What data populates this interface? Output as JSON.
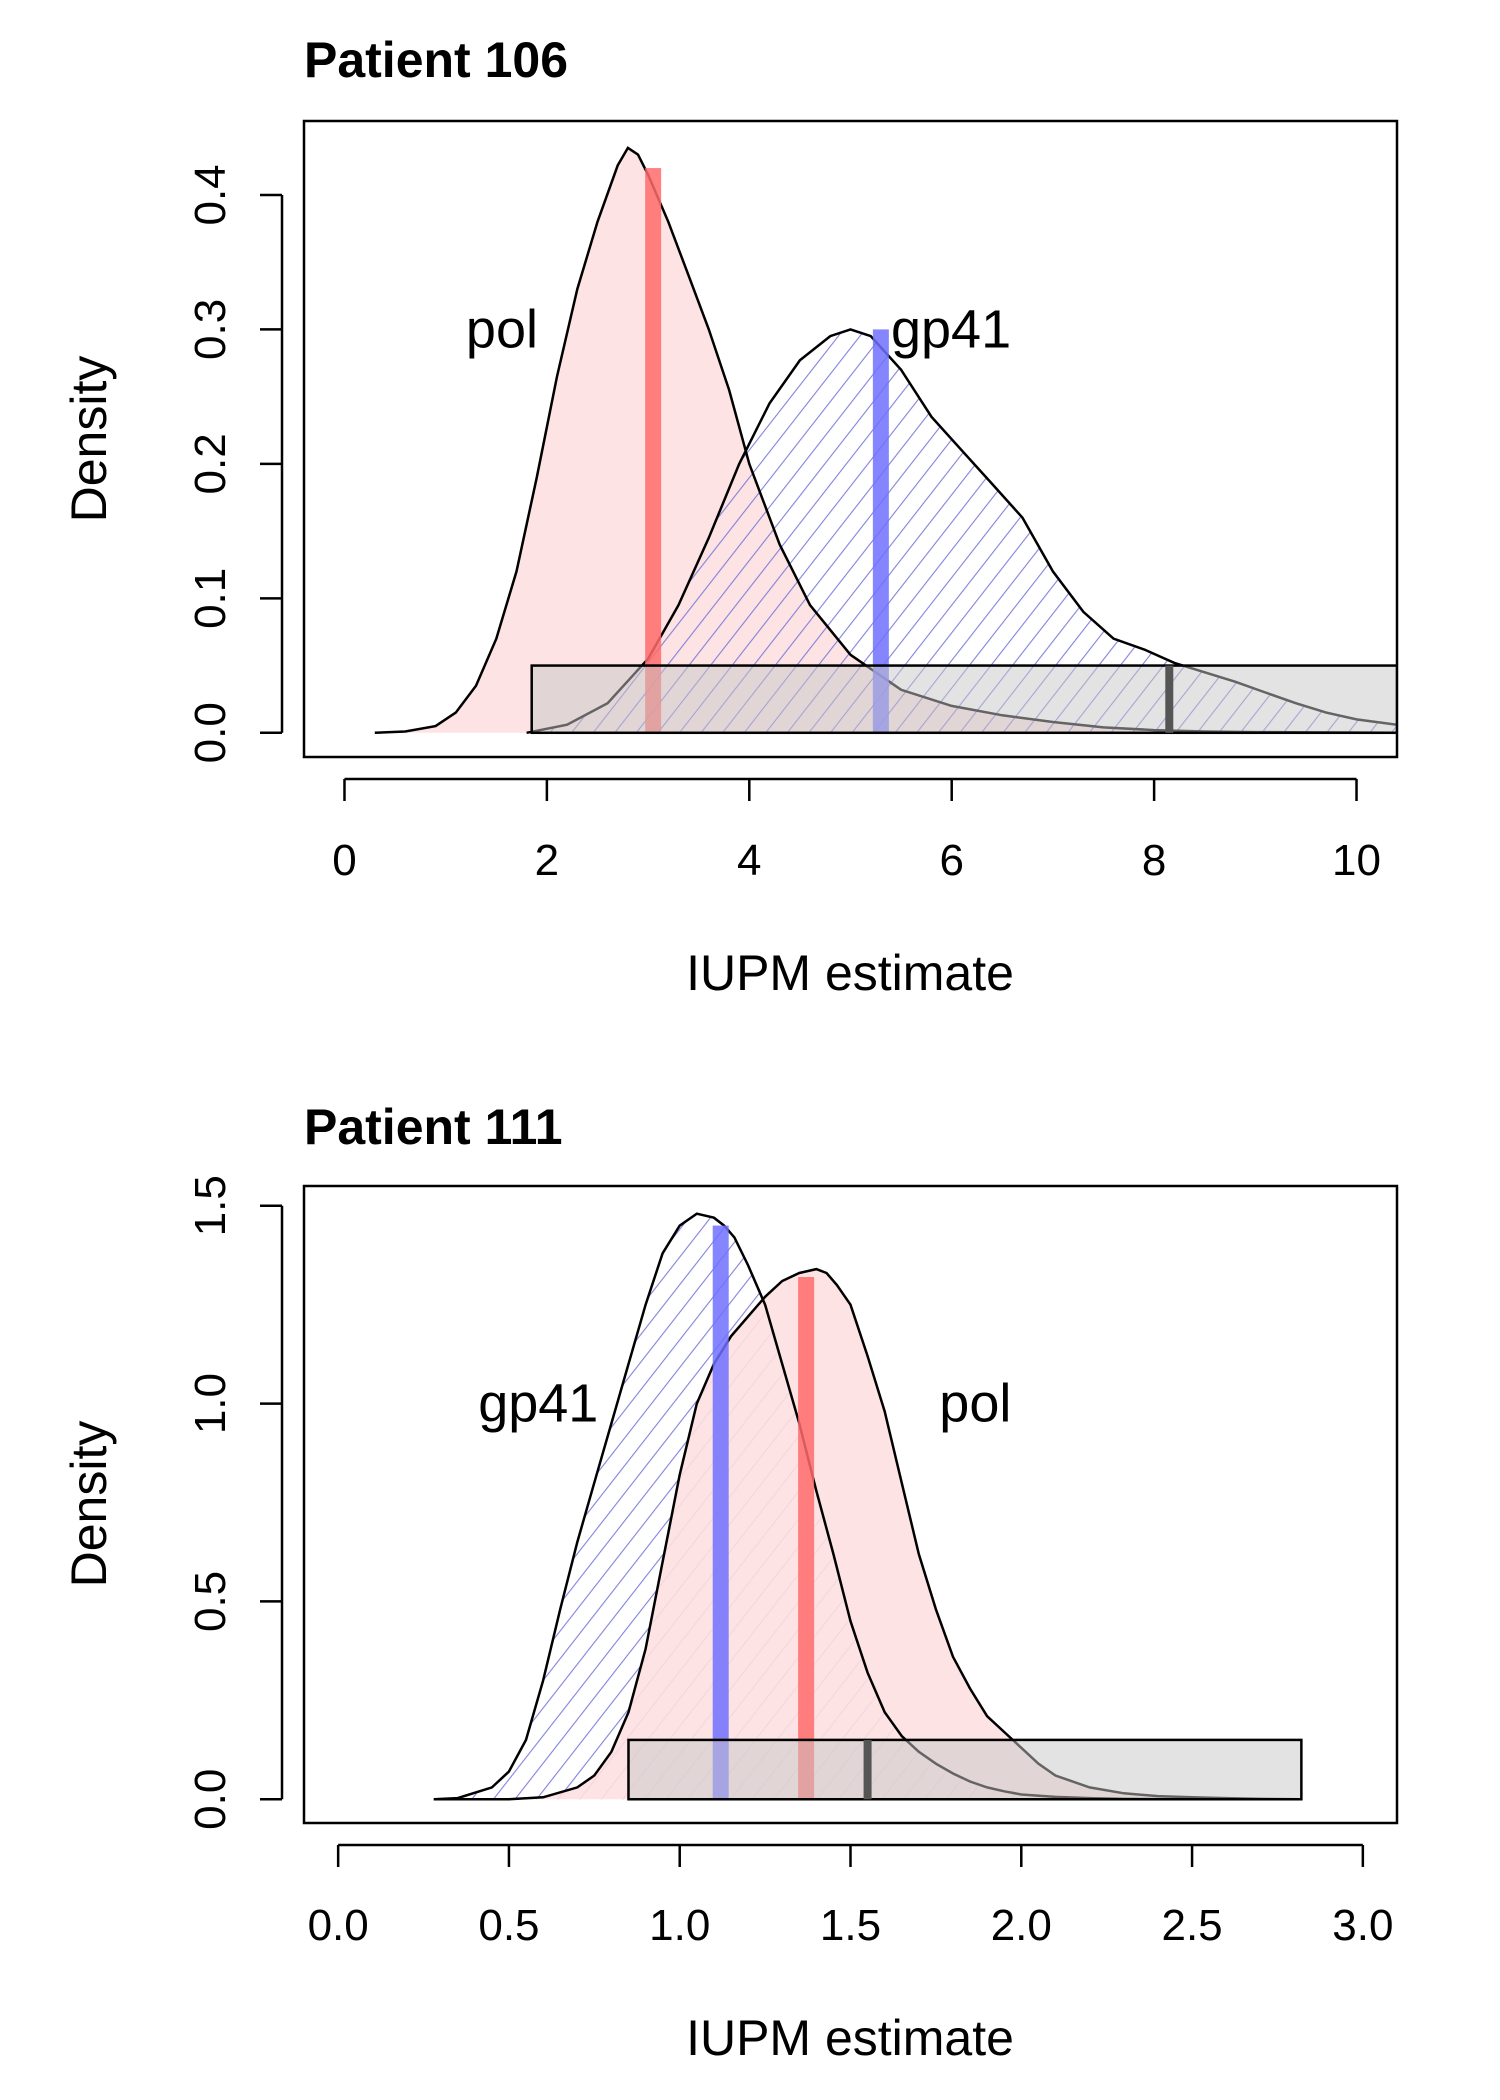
{
  "chart_data": [
    {
      "type": "area",
      "title": "Patient 106",
      "xlabel": "IUPM estimate",
      "ylabel": "Density",
      "xlim": [
        -0.4,
        10.4
      ],
      "ylim": [
        -0.018,
        0.455
      ],
      "x_ticks": [
        0,
        2,
        4,
        6,
        8,
        10
      ],
      "x_tick_labels": [
        "0",
        "2",
        "4",
        "6",
        "8",
        "10"
      ],
      "y_ticks": [
        0.0,
        0.1,
        0.2,
        0.3,
        0.4
      ],
      "y_tick_labels": [
        "0.0",
        "0.1",
        "0.2",
        "0.3",
        "0.4"
      ],
      "series": [
        {
          "name": "pol",
          "label_at": [
            1.2,
            0.3
          ],
          "fill": "#fde0e0",
          "hatched": false,
          "bar_color": "#ff6b6b",
          "estimate": 3.05,
          "estimate_height": 0.42,
          "x": [
            0.3,
            0.6,
            0.9,
            1.1,
            1.3,
            1.5,
            1.7,
            1.9,
            2.1,
            2.3,
            2.5,
            2.7,
            2.8,
            2.9,
            3.0,
            3.2,
            3.4,
            3.6,
            3.8,
            4.0,
            4.3,
            4.6,
            5.0,
            5.5,
            6.0,
            6.5,
            7.0,
            7.5,
            8.0,
            8.5,
            9.0,
            10.4
          ],
          "y": [
            0.0,
            0.001,
            0.005,
            0.015,
            0.035,
            0.07,
            0.12,
            0.19,
            0.265,
            0.33,
            0.38,
            0.422,
            0.435,
            0.43,
            0.415,
            0.38,
            0.34,
            0.3,
            0.255,
            0.2,
            0.14,
            0.095,
            0.058,
            0.032,
            0.02,
            0.013,
            0.008,
            0.004,
            0.002,
            0.001,
            0.0005,
            0.0
          ]
        },
        {
          "name": "gp41",
          "label_at": [
            5.4,
            0.3
          ],
          "fill": "#7b7bdc",
          "hatched": true,
          "bar_color": "#7070ff",
          "estimate": 5.3,
          "estimate_height": 0.3,
          "x": [
            1.8,
            2.2,
            2.6,
            3.0,
            3.3,
            3.6,
            3.9,
            4.2,
            4.5,
            4.8,
            5.0,
            5.2,
            5.5,
            5.8,
            6.1,
            6.4,
            6.7,
            7.0,
            7.3,
            7.6,
            7.9,
            8.2,
            8.5,
            8.8,
            9.1,
            9.4,
            9.7,
            10.0,
            10.4
          ],
          "y": [
            0.0,
            0.006,
            0.022,
            0.055,
            0.095,
            0.145,
            0.2,
            0.245,
            0.277,
            0.295,
            0.3,
            0.295,
            0.27,
            0.235,
            0.21,
            0.185,
            0.16,
            0.12,
            0.09,
            0.07,
            0.062,
            0.052,
            0.045,
            0.038,
            0.03,
            0.022,
            0.015,
            0.01,
            0.006
          ]
        }
      ],
      "interval_box": {
        "x0": 1.85,
        "x1": 10.4,
        "y0": 0.0,
        "y1": 0.05,
        "mark": 8.15
      }
    },
    {
      "type": "area",
      "title": "Patient 111",
      "xlabel": "IUPM estimate",
      "ylabel": "Density",
      "xlim": [
        -0.1,
        3.1
      ],
      "ylim": [
        -0.06,
        1.55
      ],
      "x_ticks": [
        0.0,
        0.5,
        1.0,
        1.5,
        2.0,
        2.5,
        3.0
      ],
      "x_tick_labels": [
        "0.0",
        "0.5",
        "1.0",
        "1.5",
        "2.0",
        "2.5",
        "3.0"
      ],
      "y_ticks": [
        0.0,
        0.5,
        1.0,
        1.5
      ],
      "y_tick_labels": [
        "0.0",
        "0.5",
        "1.0",
        "1.5"
      ],
      "series": [
        {
          "name": "gp41",
          "label_at": [
            0.41,
            1.0
          ],
          "fill": "#7b7bdc",
          "hatched": true,
          "bar_color": "#7070ff",
          "estimate": 1.12,
          "estimate_height": 1.45,
          "x": [
            0.28,
            0.35,
            0.45,
            0.5,
            0.55,
            0.6,
            0.65,
            0.7,
            0.75,
            0.8,
            0.85,
            0.9,
            0.95,
            1.0,
            1.05,
            1.1,
            1.13,
            1.16,
            1.2,
            1.25,
            1.3,
            1.35,
            1.4,
            1.45,
            1.5,
            1.55,
            1.6,
            1.65,
            1.7,
            1.75,
            1.8,
            1.85,
            1.9,
            1.95,
            2.0,
            2.1,
            2.2,
            2.3,
            2.4,
            2.5,
            2.6,
            2.7,
            2.82
          ],
          "y": [
            0.0,
            0.003,
            0.03,
            0.07,
            0.15,
            0.3,
            0.48,
            0.65,
            0.8,
            0.95,
            1.1,
            1.25,
            1.38,
            1.45,
            1.48,
            1.47,
            1.45,
            1.42,
            1.35,
            1.25,
            1.1,
            0.95,
            0.78,
            0.62,
            0.45,
            0.32,
            0.22,
            0.16,
            0.12,
            0.09,
            0.065,
            0.045,
            0.03,
            0.02,
            0.012,
            0.006,
            0.003,
            0.001,
            0.0005,
            0.0002,
            0.0001,
            0.0,
            0.0
          ]
        },
        {
          "name": "pol",
          "label_at": [
            1.76,
            1.0
          ],
          "fill": "#fde0e0",
          "hatched": false,
          "bar_color": "#ff6b6b",
          "estimate": 1.37,
          "estimate_height": 1.32,
          "x": [
            0.28,
            0.5,
            0.6,
            0.7,
            0.75,
            0.8,
            0.85,
            0.9,
            0.95,
            1.0,
            1.05,
            1.1,
            1.15,
            1.2,
            1.25,
            1.3,
            1.35,
            1.4,
            1.43,
            1.46,
            1.5,
            1.55,
            1.6,
            1.65,
            1.7,
            1.75,
            1.8,
            1.85,
            1.9,
            1.95,
            2.0,
            2.05,
            2.1,
            2.2,
            2.3,
            2.4,
            2.5,
            2.6,
            2.7,
            2.82
          ],
          "y": [
            0.0,
            0.0,
            0.005,
            0.03,
            0.06,
            0.12,
            0.22,
            0.38,
            0.6,
            0.82,
            1.0,
            1.1,
            1.17,
            1.22,
            1.27,
            1.31,
            1.33,
            1.34,
            1.33,
            1.3,
            1.25,
            1.12,
            0.98,
            0.8,
            0.62,
            0.48,
            0.36,
            0.28,
            0.21,
            0.17,
            0.13,
            0.09,
            0.06,
            0.03,
            0.015,
            0.008,
            0.005,
            0.003,
            0.001,
            0.0
          ]
        }
      ],
      "interval_box": {
        "x0": 0.85,
        "x1": 2.82,
        "y0": 0.0,
        "y1": 0.15,
        "mark": 1.55
      }
    }
  ]
}
